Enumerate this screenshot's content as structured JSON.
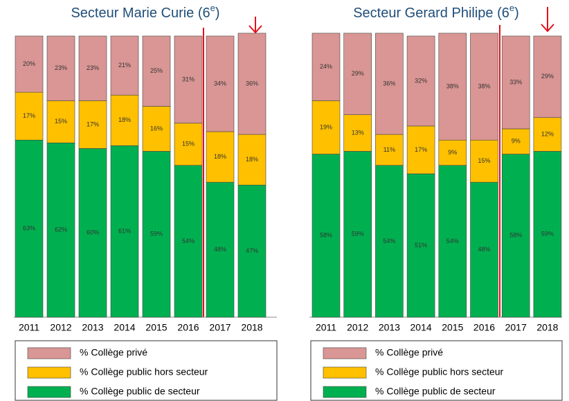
{
  "chart_data": [
    {
      "type": "stacked_bar",
      "title": [
        "Secteur Marie Curie (6",
        "e",
        ")"
      ],
      "categories": [
        "2011",
        "2012",
        "2013",
        "2014",
        "2015",
        "2016",
        "2017",
        "2018"
      ],
      "ylim": [
        0,
        100
      ],
      "series": [
        {
          "name": "% Collège privé",
          "color": "#d99694",
          "values": [
            20,
            23,
            23,
            21,
            25,
            31,
            34,
            36
          ],
          "value_labels": [
            "20%",
            "23%",
            "23%",
            "21%",
            "25%",
            "31%",
            "34%",
            "36%"
          ]
        },
        {
          "name": "% Collège public hors secteur",
          "color": "#ffc000",
          "values": [
            17,
            15,
            17,
            18,
            16,
            15,
            18,
            18
          ],
          "value_labels": [
            "17%",
            "15%",
            "17%",
            "18%",
            "16%",
            "15%",
            "18%",
            "18%"
          ]
        },
        {
          "name": "% Collège public de secteur",
          "color": "#00b050",
          "values": [
            63,
            62,
            60,
            61,
            59,
            54,
            48,
            47
          ],
          "value_labels": [
            "63%",
            "62%",
            "60%",
            "61%",
            "59%",
            "54%",
            "48%",
            "47%"
          ]
        }
      ]
    },
    {
      "type": "stacked_bar",
      "title": [
        "Secteur Gerard Philipe (6",
        "e",
        ")"
      ],
      "categories": [
        "2011",
        "2012",
        "2013",
        "2014",
        "2015",
        "2016",
        "2017",
        "2018"
      ],
      "ylim": [
        0,
        100
      ],
      "series": [
        {
          "name": "% Collège privé",
          "color": "#d99694",
          "values": [
            24,
            29,
            36,
            32,
            38,
            38,
            33,
            29
          ],
          "value_labels": [
            "24%",
            "29%",
            "36%",
            "32%",
            "38%",
            "38%",
            "33%",
            "29%"
          ]
        },
        {
          "name": "% Collège public hors secteur",
          "color": "#ffc000",
          "values": [
            19,
            13,
            11,
            17,
            9,
            15,
            9,
            12
          ],
          "value_labels": [
            "19%",
            "13%",
            "11%",
            "17%",
            "9%",
            "15%",
            "9%",
            "12%"
          ]
        },
        {
          "name": "% Collège public de secteur",
          "color": "#00b050",
          "values": [
            58,
            59,
            54,
            51,
            54,
            48,
            58,
            59
          ],
          "value_labels": [
            "58%",
            "59%",
            "54%",
            "51%",
            "54%",
            "48%",
            "58%",
            "59%"
          ]
        }
      ]
    }
  ]
}
